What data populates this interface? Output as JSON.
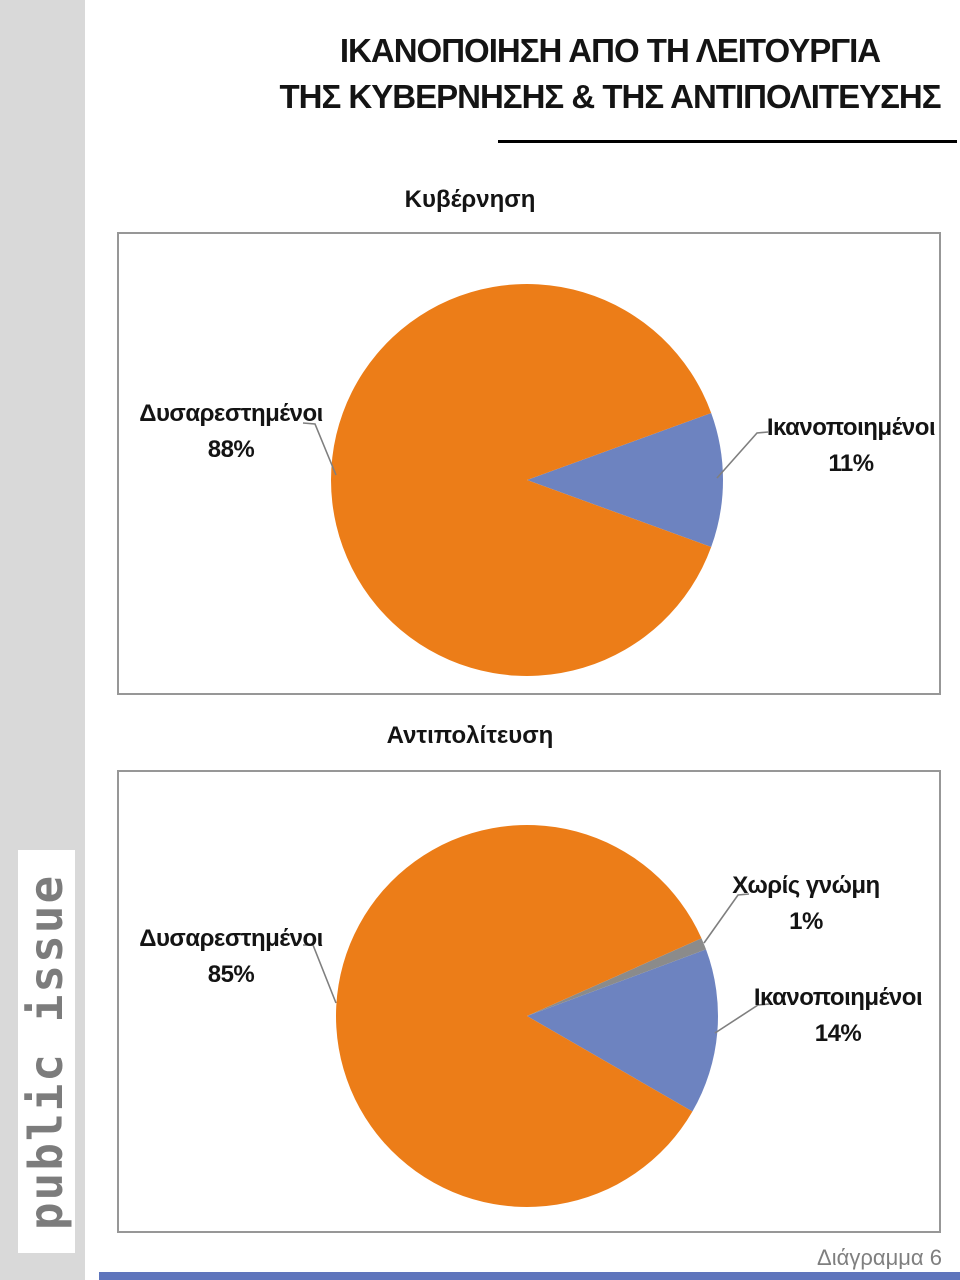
{
  "page": {
    "title_lines": [
      "ΙΚΑΝΟΠΟΙΗΣΗ ΑΠΟ ΤΗ ΛΕΙΤΟΥΡΓΙΑ",
      "ΤΗΣ ΚΥΒΕΡΝΗΣΗΣ & ΤΗΣ ΑΝΤΙΠΟΛΙΤΕΥΣΗΣ"
    ],
    "logo_text": "public issue",
    "footer_caption": "Διάγραμμα 6"
  },
  "colors": {
    "dissatisfied_orange": "#EC7D18",
    "satisfied_blue": "#6D83C0",
    "no_opinion_gray": "#8B8B8B",
    "sidebar_gray": "#D9D9D9",
    "logo_text_gray": "#7C7C7C",
    "box_border_gray": "#979797",
    "leader_line_gray": "#7F7F7F",
    "footer_text_gray": "#7F7F7F",
    "footer_bar_blue": "#5F75BC"
  },
  "chart_data": [
    {
      "type": "pie",
      "title": "Κυβέρνηση",
      "legend_position": "none",
      "labels_style": "outside-callout",
      "render": {
        "start_deg": 110
      },
      "slices": [
        {
          "key": "dissatisfied",
          "label": "Δυσαρεστημένοι",
          "value": 88,
          "pct_label": "88%",
          "color": "#EC7D18"
        },
        {
          "key": "satisfied",
          "label": "Ικανοποιημένοι",
          "value": 11,
          "pct_label": "11%",
          "color": "#6D83C0"
        }
      ]
    },
    {
      "type": "pie",
      "title": "Αντιπολίτευση",
      "legend_position": "none",
      "labels_style": "outside-callout",
      "render": {
        "start_deg": 120
      },
      "slices": [
        {
          "key": "dissatisfied",
          "label": "Δυσαρεστημένοι",
          "value": 85,
          "pct_label": "85%",
          "color": "#EC7D18"
        },
        {
          "key": "no-opinion",
          "label": "Χωρίς γνώμη",
          "value": 1,
          "pct_label": "1%",
          "color": "#8B8B8B"
        },
        {
          "key": "satisfied",
          "label": "Ικανοποιημένοι",
          "value": 14,
          "pct_label": "14%",
          "color": "#6D83C0"
        }
      ]
    }
  ]
}
